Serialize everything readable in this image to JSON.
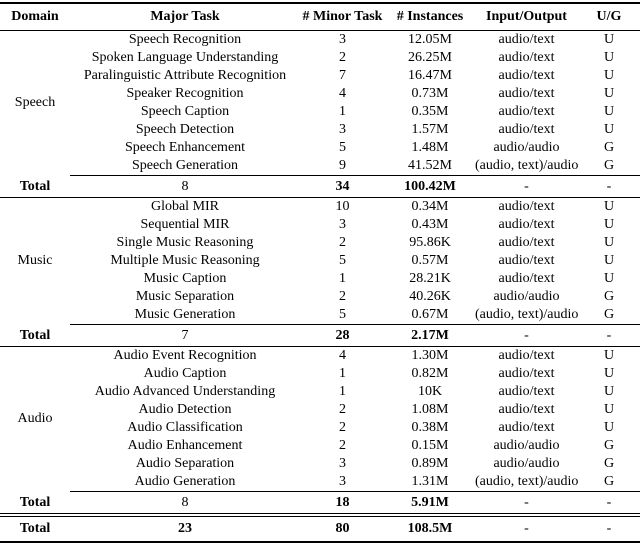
{
  "table": {
    "columns": [
      "Domain",
      "Major Task",
      "# Minor Task",
      "# Instances",
      "Input/Output",
      "U/G"
    ],
    "sections": [
      {
        "domain": "Speech",
        "rows": [
          [
            "Speech Recognition",
            "3",
            "12.05M",
            "audio/text",
            "U"
          ],
          [
            "Spoken Language Understanding",
            "2",
            "26.25M",
            "audio/text",
            "U"
          ],
          [
            "Paralinguistic Attribute Recognition",
            "7",
            "16.47M",
            "audio/text",
            "U"
          ],
          [
            "Speaker Recognition",
            "4",
            "0.73M",
            "audio/text",
            "U"
          ],
          [
            "Speech Caption",
            "1",
            "0.35M",
            "audio/text",
            "U"
          ],
          [
            "Speech Detection",
            "3",
            "1.57M",
            "audio/text",
            "U"
          ],
          [
            "Speech Enhancement",
            "5",
            "1.48M",
            "audio/audio",
            "G"
          ],
          [
            "Speech Generation",
            "9",
            "41.52M",
            "(audio, text)/audio",
            "G"
          ]
        ],
        "total": {
          "label": "Total",
          "major_task": "8",
          "minor_task": "34",
          "instances": "100.42M",
          "input_output": "-",
          "ug": "-"
        }
      },
      {
        "domain": "Music",
        "rows": [
          [
            "Global MIR",
            "10",
            "0.34M",
            "audio/text",
            "U"
          ],
          [
            "Sequential MIR",
            "3",
            "0.43M",
            "audio/text",
            "U"
          ],
          [
            "Single Music Reasoning",
            "2",
            "95.86K",
            "audio/text",
            "U"
          ],
          [
            "Multiple Music Reasoning",
            "5",
            "0.57M",
            "audio/text",
            "U"
          ],
          [
            "Music Caption",
            "1",
            "28.21K",
            "audio/text",
            "U"
          ],
          [
            "Music Separation",
            "2",
            "40.26K",
            "audio/audio",
            "G"
          ],
          [
            "Music Generation",
            "5",
            "0.67M",
            "(audio, text)/audio",
            "G"
          ]
        ],
        "total": {
          "label": "Total",
          "major_task": "7",
          "minor_task": "28",
          "instances": "2.17M",
          "input_output": "-",
          "ug": "-"
        }
      },
      {
        "domain": "Audio",
        "rows": [
          [
            "Audio Event Recognition",
            "4",
            "1.30M",
            "audio/text",
            "U"
          ],
          [
            "Audio Caption",
            "1",
            "0.82M",
            "audio/text",
            "U"
          ],
          [
            "Audio Advanced Understanding",
            "1",
            "10K",
            "audio/text",
            "U"
          ],
          [
            "Audio Detection",
            "2",
            "1.08M",
            "audio/text",
            "U"
          ],
          [
            "Audio Classification",
            "2",
            "0.38M",
            "audio/text",
            "U"
          ],
          [
            "Audio Enhancement",
            "2",
            "0.15M",
            "audio/audio",
            "G"
          ],
          [
            "Audio Separation",
            "3",
            "0.89M",
            "audio/audio",
            "G"
          ],
          [
            "Audio Generation",
            "3",
            "1.31M",
            "(audio, text)/audio",
            "G"
          ]
        ],
        "total": {
          "label": "Total",
          "major_task": "8",
          "minor_task": "18",
          "instances": "5.91M",
          "input_output": "-",
          "ug": "-"
        }
      }
    ],
    "grand_total": {
      "label": "Total",
      "major_task": "23",
      "minor_task": "80",
      "instances": "108.5M",
      "input_output": "-",
      "ug": "-"
    }
  }
}
